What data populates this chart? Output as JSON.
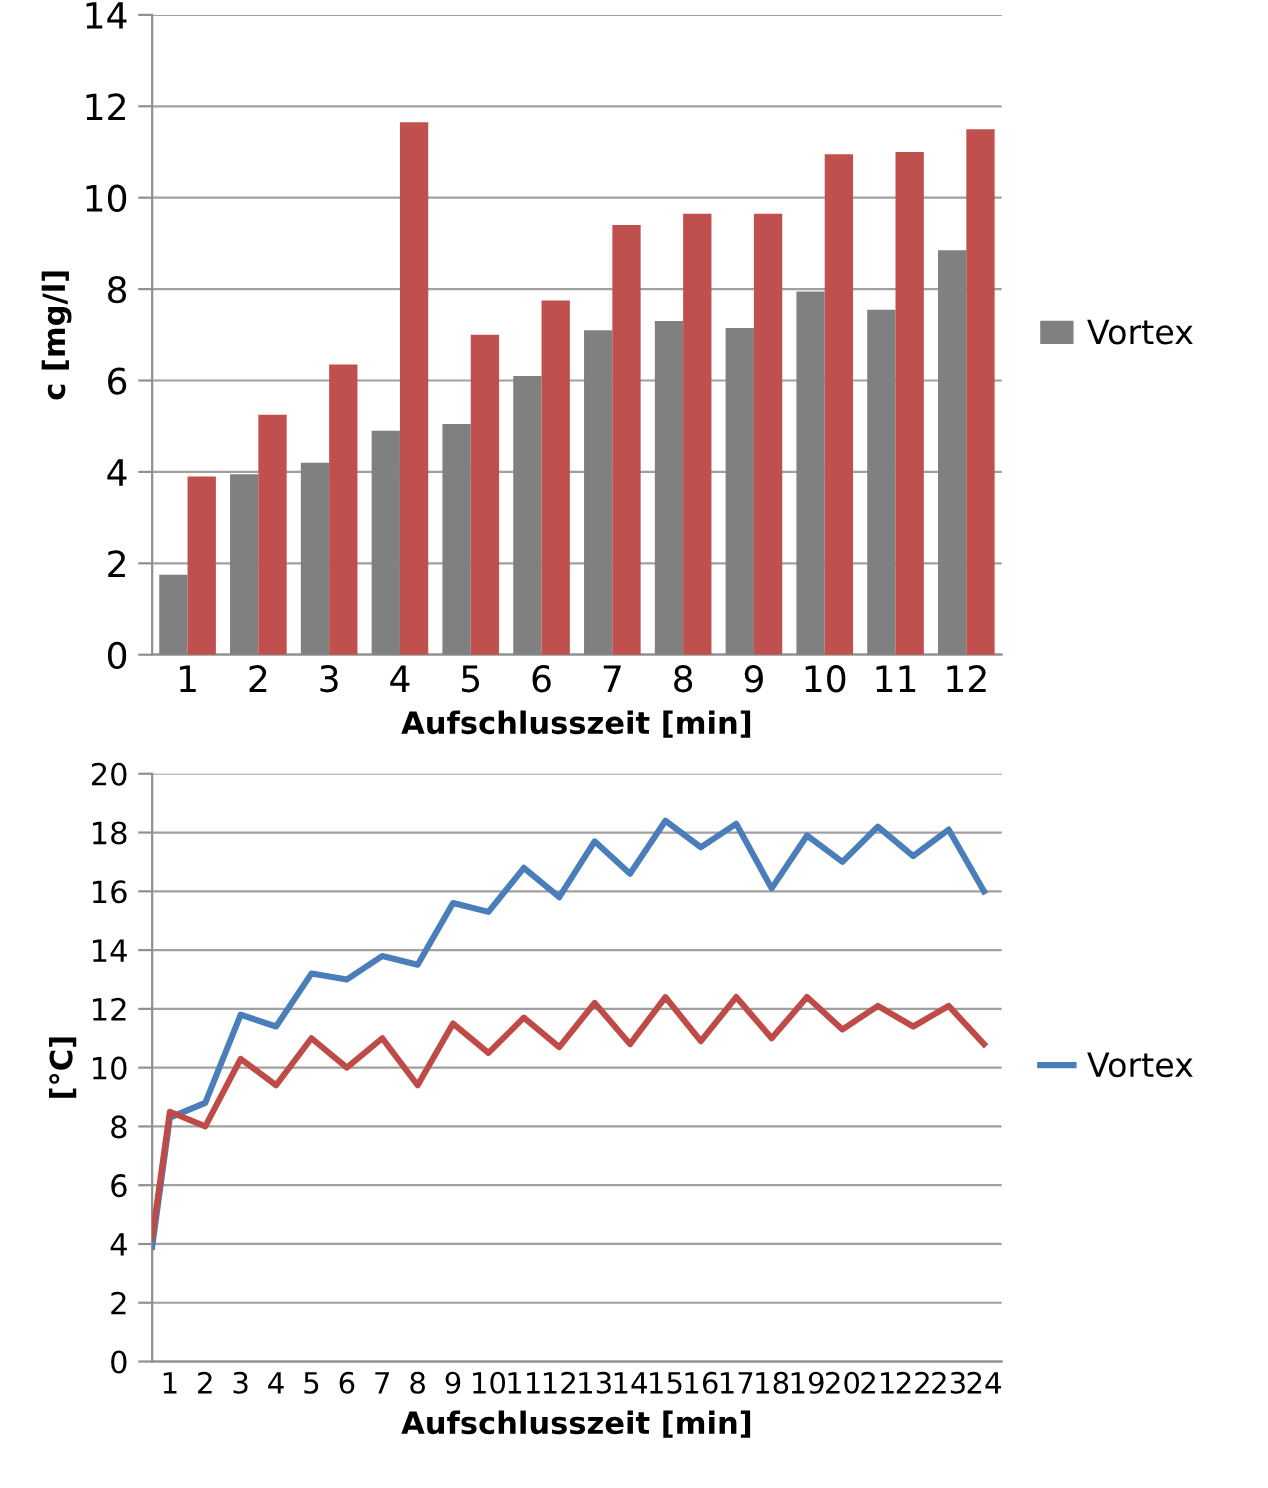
{
  "chart_data": [
    {
      "type": "bar",
      "xlabel": "Aufschlusszeit [min]",
      "ylabel": "c [mg/l]",
      "categories": [
        "1",
        "2",
        "3",
        "4",
        "5",
        "6",
        "7",
        "8",
        "9",
        "10",
        "11",
        "12"
      ],
      "series": [
        {
          "name": "Vortex",
          "color": "#808080",
          "values": [
            1.75,
            3.95,
            4.2,
            4.9,
            5.05,
            6.1,
            7.1,
            7.3,
            7.15,
            7.95,
            7.55,
            8.85
          ]
        },
        {
          "color": "#c0504d",
          "values": [
            3.9,
            5.25,
            6.35,
            11.65,
            7.0,
            7.75,
            9.4,
            9.65,
            9.65,
            10.95,
            11.0,
            11.5
          ]
        }
      ],
      "ylim": [
        0,
        14
      ],
      "yticks": [
        0,
        2,
        4,
        6,
        8,
        10,
        12,
        14
      ],
      "grid": "y",
      "legend": "right"
    },
    {
      "type": "line",
      "xlabel": "Aufschlusszeit [min]",
      "ylabel": "[°C]",
      "x": [
        0.5,
        1,
        2,
        3,
        4,
        5,
        6,
        7,
        8,
        9,
        10,
        11,
        12,
        13,
        14,
        15,
        16,
        17,
        18,
        19,
        20,
        21,
        22,
        23,
        24
      ],
      "series": [
        {
          "name": "Vortex",
          "color": "#4a7ebb",
          "values": [
            3.9,
            8.3,
            8.8,
            11.8,
            11.4,
            13.2,
            13.0,
            13.8,
            13.5,
            15.6,
            15.3,
            16.8,
            15.8,
            17.7,
            16.6,
            18.4,
            17.5,
            18.3,
            16.1,
            17.9,
            17.0,
            18.2,
            17.2,
            18.1,
            16.0
          ]
        },
        {
          "color": "#be4b48",
          "values": [
            4.2,
            8.5,
            8.0,
            10.3,
            9.4,
            11.0,
            10.0,
            11.0,
            9.4,
            11.5,
            10.5,
            11.7,
            10.7,
            12.2,
            10.8,
            12.4,
            10.9,
            12.4,
            11.0,
            12.4,
            11.3,
            12.1,
            11.4,
            12.1,
            10.8
          ]
        }
      ],
      "xlim": [
        0.5,
        24.5
      ],
      "xticks": [
        1,
        2,
        3,
        4,
        5,
        6,
        7,
        8,
        9,
        10,
        11,
        12,
        13,
        14,
        15,
        16,
        17,
        18,
        19,
        20,
        21,
        22,
        23,
        24
      ],
      "ylim": [
        0,
        20
      ],
      "yticks": [
        0,
        2,
        4,
        6,
        8,
        10,
        12,
        14,
        16,
        18,
        20
      ],
      "grid": "y",
      "legend": "right",
      "line_style": "solid",
      "marker": "none"
    }
  ]
}
